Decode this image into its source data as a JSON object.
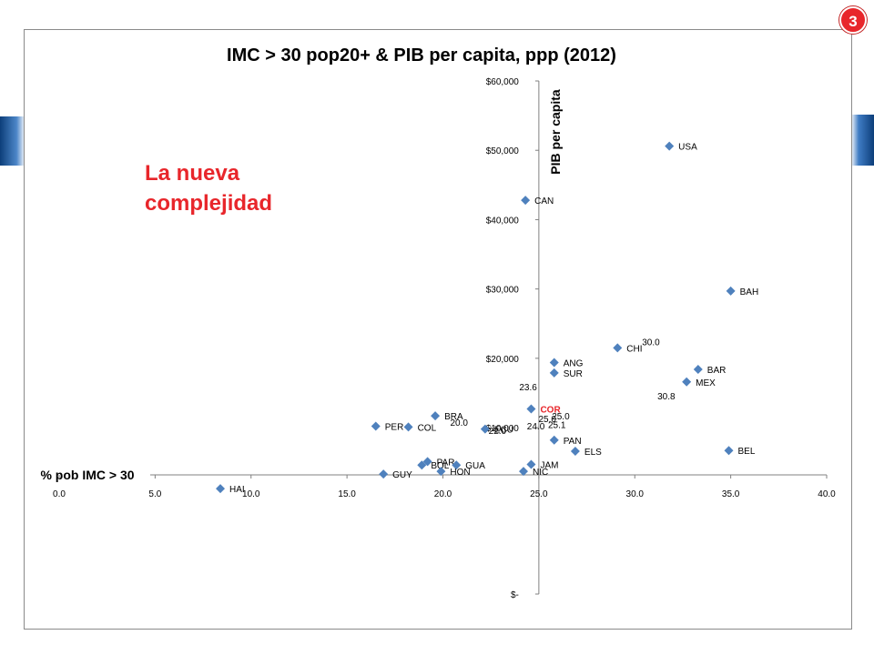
{
  "slide": {
    "badge": "3",
    "tagline_line1": "La nueva",
    "tagline_line2": "complejidad",
    "footer_text": ""
  },
  "colors": {
    "marker": "#4f81bd",
    "accent": "#e8262b",
    "axis": "#808080",
    "text": "#000000"
  },
  "chart_data": {
    "type": "scatter",
    "title": "IMC > 30 pop20+ & PIB per capita, ppp (2012)",
    "xlabel": "% pob IMC > 30",
    "ylabel": "PIB per capita",
    "xlim": [
      0,
      40
    ],
    "ylim": [
      -14000,
      60000
    ],
    "x_ticks": [
      "0.0",
      "5.0",
      "10.0",
      "15.0",
      "20.0",
      "25.0",
      "30.0",
      "35.0",
      "40.0"
    ],
    "y_ticks": [
      {
        "value": 60000,
        "label": "$60,000"
      },
      {
        "value": 50000,
        "label": "$50,000"
      },
      {
        "value": 40000,
        "label": "$40,000"
      },
      {
        "value": 30000,
        "label": "$30,000"
      },
      {
        "value": 20000,
        "label": "$20,000"
      },
      {
        "value": 10000,
        "label": "$10,000"
      },
      {
        "value": -14000,
        "label": "$-"
      }
    ],
    "grid": false,
    "legend": "none",
    "points": [
      {
        "label": "USA",
        "x": 31.8,
        "y": 50600
      },
      {
        "label": "CAN",
        "x": 24.3,
        "y": 42800
      },
      {
        "label": "BAH",
        "x": 35.0,
        "y": 29700
      },
      {
        "label": "CHI",
        "x": 29.1,
        "y": 21500
      },
      {
        "label": "BAR",
        "x": 33.3,
        "y": 18400
      },
      {
        "label": "MEX",
        "x": 32.7,
        "y": 16600
      },
      {
        "label": "ANG",
        "x": 25.8,
        "y": 19400
      },
      {
        "label": "SUR",
        "x": 25.8,
        "y": 17900
      },
      {
        "label": "COR",
        "x": 24.6,
        "y": 12700
      },
      {
        "label": "BRA",
        "x": 19.6,
        "y": 11700
      },
      {
        "label": "PER",
        "x": 16.5,
        "y": 10200
      },
      {
        "label": "COL",
        "x": 18.2,
        "y": 10100
      },
      {
        "label": "ECU",
        "x": 22.2,
        "y": 9800
      },
      {
        "label": "PAN",
        "x": 25.8,
        "y": 8200
      },
      {
        "label": "ELS",
        "x": 26.9,
        "y": 6600
      },
      {
        "label": "BEL",
        "x": 34.9,
        "y": 6700
      },
      {
        "label": "JAM",
        "x": 24.6,
        "y": 4700
      },
      {
        "label": "NIC",
        "x": 24.2,
        "y": 3700
      },
      {
        "label": "PAR",
        "x": 19.2,
        "y": 5100
      },
      {
        "label": "BOL",
        "x": 18.9,
        "y": 4600
      },
      {
        "label": "GUA",
        "x": 20.7,
        "y": 4600
      },
      {
        "label": "HON",
        "x": 19.9,
        "y": 3700
      },
      {
        "label": "GUY",
        "x": 16.9,
        "y": 3300
      },
      {
        "label": "HAI",
        "x": 8.4,
        "y": 1200
      }
    ],
    "value_labels": [
      {
        "text": "30.0",
        "x": 30.0,
        "y": 22400
      },
      {
        "text": "30.8",
        "x": 30.8,
        "y": 14600
      },
      {
        "text": "23.6",
        "x": 23.6,
        "y": 15900
      },
      {
        "text": "20.0",
        "x": 20.0,
        "y": 10800
      },
      {
        "text": "24.0",
        "x": 24.0,
        "y": 10300
      },
      {
        "text": "25.1",
        "x": 25.1,
        "y": 10500
      },
      {
        "text": "25.0",
        "x": 24.6,
        "y": 11300
      },
      {
        "text": "22.0",
        "x": 22.0,
        "y": 9600
      },
      {
        "text": "25.0",
        "x": 25.3,
        "y": 11700
      }
    ]
  }
}
